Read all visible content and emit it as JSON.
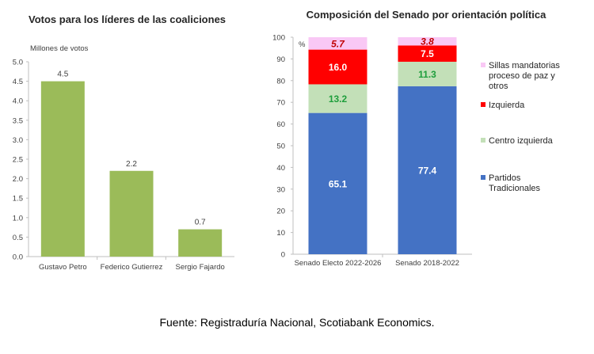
{
  "source_note": "Fuente: Registraduría Nacional, Scotiabank Economics.",
  "chart_data": [
    {
      "type": "bar",
      "title": "Votos para los líderes de las coaliciones",
      "ylabel": "Millones de votos",
      "categories": [
        "Gustavo Petro",
        "Federico Gutierrez",
        "Sergio Fajardo"
      ],
      "values": [
        4.5,
        2.2,
        0.7
      ],
      "value_labels": [
        "4.5",
        "2.2",
        "0.7"
      ],
      "ylim": [
        0,
        5
      ],
      "yticks": [
        "0.0",
        "0.5",
        "1.0",
        "1.5",
        "2.0",
        "2.5",
        "3.0",
        "3.5",
        "4.0",
        "4.5",
        "5.0"
      ],
      "color": "#9BBB59",
      "grid": false,
      "legend": "none"
    },
    {
      "type": "bar",
      "stacked": true,
      "title": "Composición del Senado por orientación política",
      "ylabel": "%",
      "categories": [
        "Senado Electo 2022-2026",
        "Senado 2018-2022"
      ],
      "ylim": [
        0,
        100
      ],
      "yticks": [
        "0",
        "10",
        "20",
        "30",
        "40",
        "50",
        "60",
        "70",
        "80",
        "90",
        "100"
      ],
      "legend_position": "right",
      "series": [
        {
          "name": "Partidos Tradicionales",
          "values": [
            65.1,
            77.4
          ],
          "labels": [
            "65.1",
            "77.4"
          ],
          "color": "#4472C4",
          "label_color": "#ffffff",
          "label_italic": false
        },
        {
          "name": "Centro izquierda",
          "values": [
            13.2,
            11.3
          ],
          "labels": [
            "13.2",
            "11.3"
          ],
          "color": "#C3E0B8",
          "label_color": "#1E9E3C",
          "label_italic": false
        },
        {
          "name": "Izquierda",
          "values": [
            16.0,
            7.5
          ],
          "labels": [
            "16.0",
            "7.5"
          ],
          "color": "#FF0000",
          "label_color": "#ffffff",
          "label_italic": false
        },
        {
          "name": "Sillas mandatorias proceso de paz y otros",
          "values": [
            5.7,
            3.8
          ],
          "labels": [
            "5.7",
            "3.8"
          ],
          "color": "#F9C8F5",
          "label_color": "#C00000",
          "label_italic": true
        }
      ]
    }
  ]
}
